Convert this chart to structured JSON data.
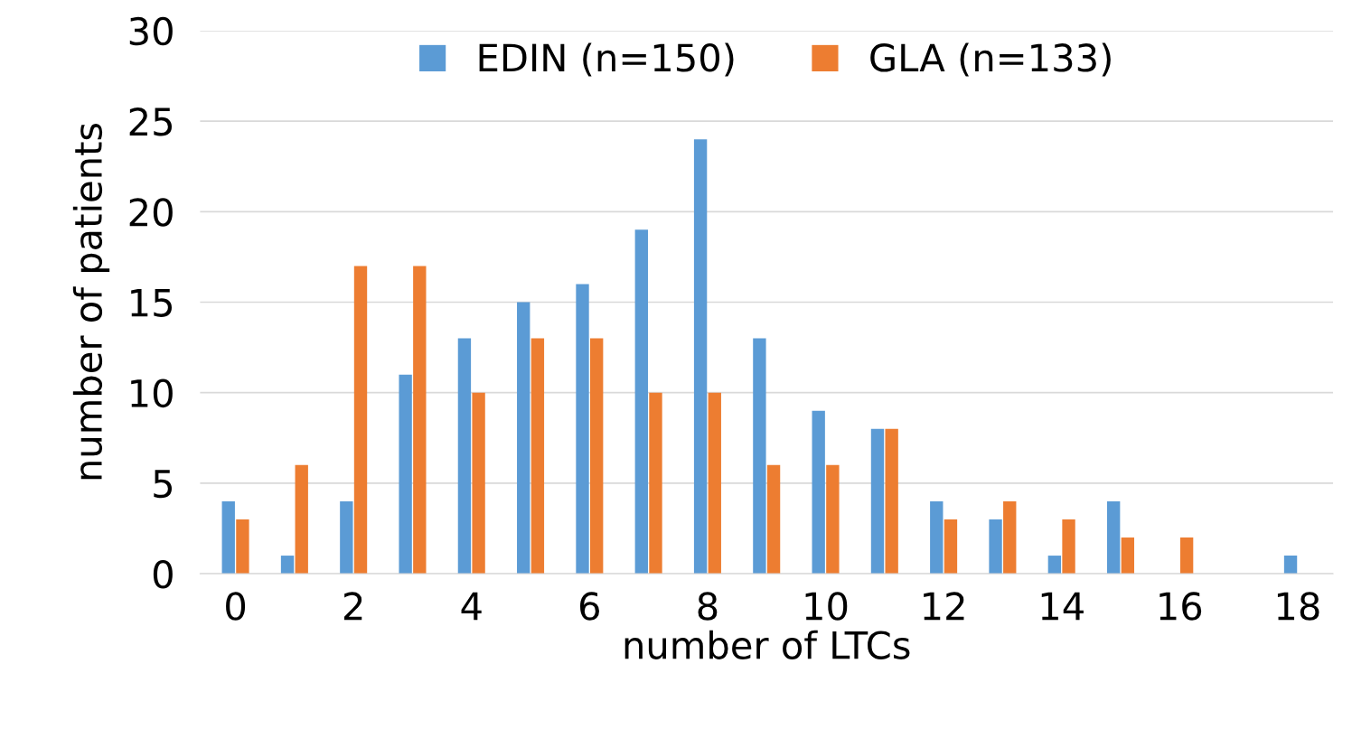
{
  "chart_data": {
    "type": "bar",
    "xlabel": "number of LTCs",
    "ylabel": "number of patients",
    "categories": [
      "0",
      null,
      "2",
      null,
      "4",
      null,
      "6",
      null,
      "8",
      null,
      "10",
      null,
      "12",
      null,
      "14",
      null,
      "16",
      null,
      "18"
    ],
    "series": [
      {
        "name": "EDIN (n=150)",
        "color": "#5b9bd5",
        "values": [
          4,
          1,
          4,
          11,
          13,
          15,
          16,
          19,
          24,
          13,
          9,
          8,
          4,
          3,
          1,
          4,
          0,
          0,
          1
        ]
      },
      {
        "name": "GLA (n=133)",
        "color": "#ed7d31",
        "values": [
          3,
          6,
          17,
          17,
          10,
          13,
          13,
          10,
          10,
          6,
          6,
          8,
          3,
          4,
          3,
          2,
          2,
          0,
          0
        ]
      }
    ],
    "ylim": [
      0,
      30
    ],
    "yticks": [
      0,
      5,
      10,
      15,
      20,
      25,
      30
    ],
    "grid": "y",
    "legend": "top"
  }
}
